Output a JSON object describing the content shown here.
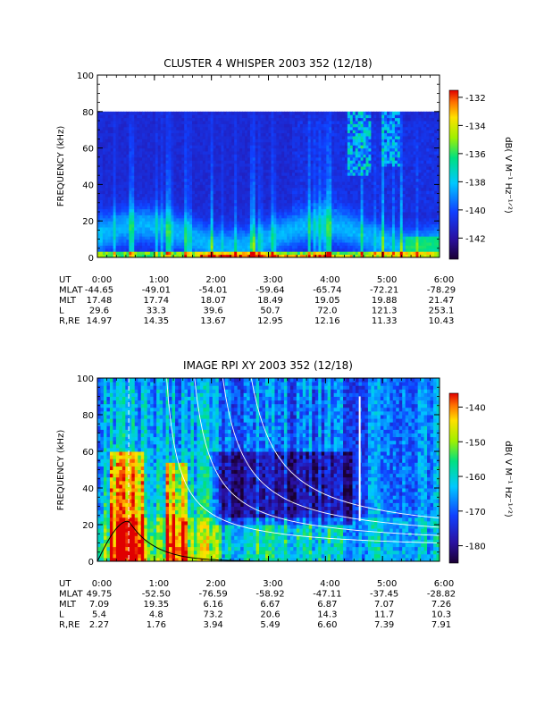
{
  "chart_data": [
    {
      "type": "heatmap",
      "title": "CLUSTER 4 WHISPER 2003 352 (12/18)",
      "ylabel": "FREQUENCY (kHz)",
      "ylim": [
        0,
        100
      ],
      "y_ticks": [
        "0",
        "20",
        "40",
        "60",
        "80",
        "100"
      ],
      "x_ticks": [
        "0:00",
        "1:00",
        "2:00",
        "3:00",
        "4:00",
        "5:00",
        "6:00"
      ],
      "xlim_hours": [
        0,
        6
      ],
      "data_top_khz": 80,
      "colorbar": {
        "label": "dB( V M⁻¹ Hz⁻¹ᐟ²)",
        "range": [
          -143.5,
          -131.5
        ],
        "ticks": [
          "-132",
          "-134",
          "-136",
          "-138",
          "-140",
          "-142"
        ]
      },
      "ephemeris": {
        "labels": [
          "UT",
          "MLAT",
          "MLT",
          "L",
          "R,RE"
        ],
        "rows": [
          [
            "0:00",
            "1:00",
            "2:00",
            "3:00",
            "4:00",
            "5:00",
            "6:00"
          ],
          [
            "-44.65",
            "-49.01",
            "-54.01",
            "-59.64",
            "-65.74",
            "-72.21",
            "-78.29"
          ],
          [
            "17.48",
            "17.74",
            "18.07",
            "18.49",
            "19.05",
            "19.88",
            "21.47"
          ],
          [
            "29.6",
            "33.3",
            "39.6",
            "50.7",
            "72.0",
            "121.3",
            "253.1"
          ],
          [
            "14.97",
            "14.35",
            "13.67",
            "12.95",
            "12.16",
            "11.33",
            "10.43"
          ]
        ]
      }
    },
    {
      "type": "heatmap",
      "title": "IMAGE RPI XY 2003 352 (12/18)",
      "ylabel": "FREQUENCY (kHz)",
      "ylim": [
        0,
        100
      ],
      "y_ticks": [
        "0",
        "20",
        "40",
        "60",
        "80",
        "100"
      ],
      "x_ticks": [
        "0:00",
        "1:00",
        "2:00",
        "3:00",
        "4:00",
        "5:00",
        "6:00"
      ],
      "xlim_hours": [
        0,
        6
      ],
      "colorbar": {
        "label": "dB( V M⁻¹ Hz⁻¹ᐟ²)",
        "range": [
          -185,
          -136
        ],
        "ticks": [
          "-140",
          "-150",
          "-160",
          "-170",
          "-180"
        ]
      },
      "ephemeris": {
        "labels": [
          "UT",
          "MLAT",
          "MLT",
          "L",
          "R,RE"
        ],
        "rows": [
          [
            "0:00",
            "1:00",
            "2:00",
            "3:00",
            "4:00",
            "5:00",
            "6:00"
          ],
          [
            "49.75",
            "-52.50",
            "-76.59",
            "-58.92",
            "-47.11",
            "-37.45",
            "-28.82"
          ],
          [
            "7.09",
            "19.35",
            "6.16",
            "6.67",
            "6.87",
            "7.07",
            "7.26"
          ],
          [
            "5.4",
            "4.8",
            "73.2",
            "20.6",
            "14.3",
            "11.7",
            "10.3"
          ],
          [
            "2.27",
            "1.76",
            "3.94",
            "5.49",
            "6.60",
            "7.39",
            "7.91"
          ]
        ]
      }
    }
  ]
}
